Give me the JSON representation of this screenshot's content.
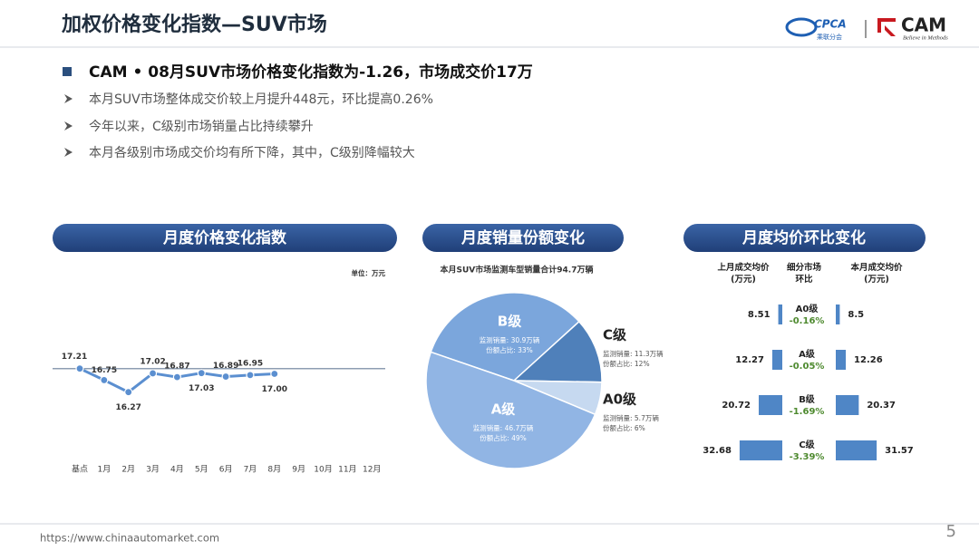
{
  "header": {
    "title": "加权价格变化指数—SUV市场",
    "logo_left": "CPCA",
    "logo_left_sub": "乘联分会",
    "logo_right": "CAM",
    "logo_right_sub": "Believe in Methods"
  },
  "headline": "CAM • 08月SUV市场价格变化指数为-1.26，市场成交价17万",
  "bullets": [
    "本月SUV市场整体成交价较上月提升448元，环比提高0.26%",
    "今年以来，C级别市场销量占比持续攀升",
    "本月各级别市场成交价均有所下降，其中，C级别降幅较大"
  ],
  "panels": [
    "月度价格变化指数",
    "月度销量份额变化",
    "月度均价环比变化"
  ],
  "chart_data": [
    {
      "type": "line",
      "unit": "单位：万元",
      "categories": [
        "基点",
        "1月",
        "2月",
        "3月",
        "4月",
        "5月",
        "6月",
        "7月",
        "8月",
        "9月",
        "10月",
        "11月",
        "12月"
      ],
      "values": [
        17.21,
        16.75,
        16.27,
        17.02,
        16.87,
        17.03,
        16.89,
        16.95,
        17.0,
        null,
        null,
        null,
        null
      ],
      "value_labels": [
        "17.21",
        "16.75",
        "16.27",
        "17.02",
        "16.87",
        "17.03",
        "16.89",
        "16.95",
        "17.00",
        null,
        null,
        null,
        null
      ],
      "color": "#5b8fd0",
      "ylim": [
        15.5,
        18.5
      ]
    },
    {
      "type": "pie",
      "title": "本月SUV市场监测车型销量合计94.7万辆",
      "categories": [
        "B级",
        "C级",
        "A0级",
        "A级"
      ],
      "values": [
        33,
        12,
        6,
        49
      ],
      "value_labels": [
        "份额占比: 33%",
        "份额占比: 12%",
        "份额占比: 6%",
        "份额占比: 49%"
      ],
      "sales_labels": [
        "监测销量: 30.9万辆",
        "监测销量: 11.3万辆",
        "监测销量: 5.7万辆",
        "监测销量: 46.7万辆"
      ],
      "colors": [
        "#7ba6dc",
        "#4f80ba",
        "#c6d9f0",
        "#91b5e4"
      ]
    },
    {
      "type": "diverging-bar",
      "categories": [
        "A0级",
        "A级",
        "B级",
        "C级"
      ],
      "series": [
        {
          "name": "上月成交均价\n(万元)",
          "color": "#4f86c6",
          "values": [
            8.51,
            12.27,
            20.72,
            32.68
          ]
        },
        {
          "name": "本月成交均价\n(万元)",
          "color": "#4f86c6",
          "values": [
            8.5,
            12.26,
            20.37,
            31.57
          ]
        }
      ],
      "change": {
        "name": "细分市场\n环比",
        "color": "#4e8a2f",
        "values": [
          -0.16,
          -0.05,
          -1.69,
          -3.39
        ],
        "value_labels": [
          "-0.16%",
          "-0.05%",
          "-1.69%",
          "-3.39%"
        ]
      },
      "xlim": [
        6,
        40
      ]
    }
  ],
  "footer": {
    "url": "https://www.chinaautomarket.com",
    "page": "5"
  }
}
